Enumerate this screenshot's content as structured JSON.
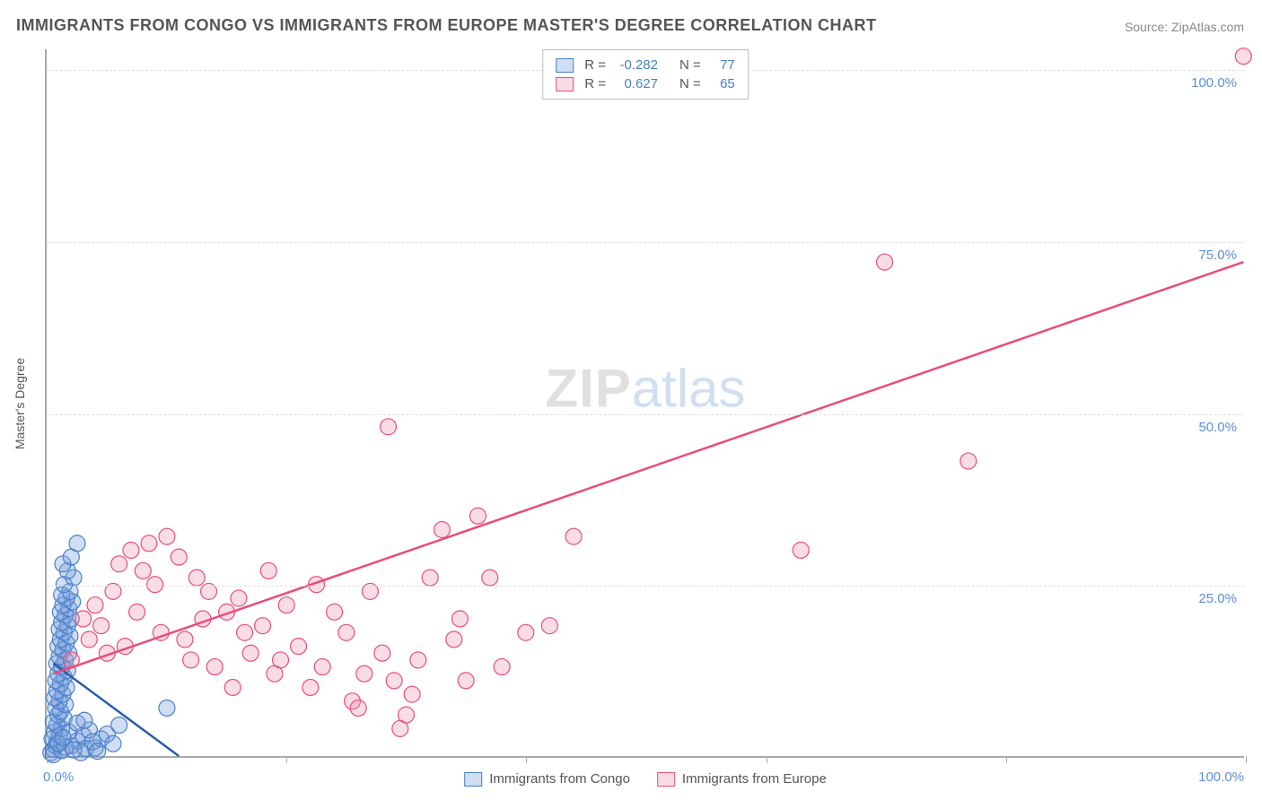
{
  "title": "IMMIGRANTS FROM CONGO VS IMMIGRANTS FROM EUROPE MASTER'S DEGREE CORRELATION CHART",
  "source": "Source: ZipAtlas.com",
  "ylabel": "Master's Degree",
  "watermark_zip": "ZIP",
  "watermark_atlas": "atlas",
  "chart": {
    "type": "scatter",
    "xlim": [
      0,
      100
    ],
    "ylim": [
      0,
      103
    ],
    "x_ticks": [
      0,
      20,
      40,
      60,
      80,
      100
    ],
    "y_gridlines": [
      25,
      50,
      75,
      100
    ],
    "x_origin_label": "0.0%",
    "x_max_label": "100.0%",
    "y_tick_labels": [
      "25.0%",
      "50.0%",
      "75.0%",
      "100.0%"
    ],
    "background_color": "#ffffff",
    "grid_color": "#dddddd",
    "axis_color": "#aaaaaa",
    "axis_label_color": "#5b8fd6",
    "marker_radius": 9,
    "line_width": 2.5,
    "series": [
      {
        "name": "Immigrants from Congo",
        "legend_label": "Immigrants from Congo",
        "color_fill": "rgba(120,160,220,0.35)",
        "color_stroke": "#4a7fc9",
        "line_color": "#2a5ca8",
        "R_label": "R =",
        "R_value": "-0.282",
        "N_label": "N =",
        "N_value": "77",
        "trend_line": {
          "x1": 0.5,
          "y1": 13.5,
          "x2": 11,
          "y2": 0
        },
        "points": [
          [
            0.3,
            0.5
          ],
          [
            0.5,
            1
          ],
          [
            0.7,
            1.5
          ],
          [
            0.8,
            2
          ],
          [
            0.4,
            2.5
          ],
          [
            1,
            3
          ],
          [
            0.6,
            3.5
          ],
          [
            1.2,
            4
          ],
          [
            0.8,
            4.5
          ],
          [
            0.5,
            5
          ],
          [
            1.4,
            5.5
          ],
          [
            0.9,
            6
          ],
          [
            1.1,
            6.5
          ],
          [
            0.7,
            7
          ],
          [
            1.5,
            7.5
          ],
          [
            1,
            8
          ],
          [
            0.6,
            8.5
          ],
          [
            1.3,
            9
          ],
          [
            0.8,
            9.5
          ],
          [
            1.6,
            10
          ],
          [
            1.1,
            10.5
          ],
          [
            0.7,
            11
          ],
          [
            1.4,
            11.5
          ],
          [
            0.9,
            12
          ],
          [
            1.7,
            12.5
          ],
          [
            1.2,
            13
          ],
          [
            0.8,
            13.5
          ],
          [
            1.5,
            14
          ],
          [
            1,
            14.5
          ],
          [
            1.8,
            15
          ],
          [
            1.3,
            15.5
          ],
          [
            0.9,
            16
          ],
          [
            1.6,
            16.5
          ],
          [
            1.1,
            17
          ],
          [
            1.9,
            17.5
          ],
          [
            1.4,
            18
          ],
          [
            1,
            18.5
          ],
          [
            1.7,
            19
          ],
          [
            1.2,
            19.5
          ],
          [
            2,
            20
          ],
          [
            1.5,
            20.5
          ],
          [
            1.1,
            21
          ],
          [
            1.8,
            21.5
          ],
          [
            1.3,
            22
          ],
          [
            2.1,
            22.5
          ],
          [
            1.6,
            23
          ],
          [
            1.2,
            23.5
          ],
          [
            1.9,
            24
          ],
          [
            1.4,
            25
          ],
          [
            2.2,
            26
          ],
          [
            1.7,
            27
          ],
          [
            1.3,
            28
          ],
          [
            2,
            29
          ],
          [
            2.5,
            31
          ],
          [
            0.5,
            0.2
          ],
          [
            1.2,
            0.8
          ],
          [
            2,
            1.5
          ],
          [
            2.5,
            2.2
          ],
          [
            3,
            3
          ],
          [
            3.5,
            3.8
          ],
          [
            4,
            1.2
          ],
          [
            4.5,
            2.5
          ],
          [
            5,
            3.2
          ],
          [
            5.5,
            1.8
          ],
          [
            6,
            4.5
          ],
          [
            2.8,
            0.5
          ],
          [
            3.2,
            1.1
          ],
          [
            10,
            7
          ],
          [
            1.5,
            1.3
          ],
          [
            2.2,
            0.9
          ],
          [
            3.8,
            2.1
          ],
          [
            4.2,
            0.7
          ],
          [
            1.8,
            3.5
          ],
          [
            2.5,
            4.8
          ],
          [
            3.1,
            5.2
          ],
          [
            0.9,
            1.8
          ],
          [
            1.3,
            2.7
          ]
        ]
      },
      {
        "name": "Immigrants from Europe",
        "legend_label": "Immigrants from Europe",
        "color_fill": "rgba(240,140,170,0.3)",
        "color_stroke": "#e84d7a",
        "line_color": "#e84d7a",
        "R_label": "R =",
        "R_value": "0.627",
        "N_label": "N =",
        "N_value": "65",
        "trend_line": {
          "x1": 0.5,
          "y1": 12,
          "x2": 100,
          "y2": 72
        },
        "points": [
          [
            2,
            14
          ],
          [
            3,
            20
          ],
          [
            4,
            22
          ],
          [
            5,
            15
          ],
          [
            5.5,
            24
          ],
          [
            6,
            28
          ],
          [
            7,
            30
          ],
          [
            7.5,
            21
          ],
          [
            8,
            27
          ],
          [
            8.5,
            31
          ],
          [
            9,
            25
          ],
          [
            10,
            32
          ],
          [
            11,
            29
          ],
          [
            12,
            14
          ],
          [
            12.5,
            26
          ],
          [
            13,
            20
          ],
          [
            14,
            13
          ],
          [
            15,
            21
          ],
          [
            15.5,
            10
          ],
          [
            16,
            23
          ],
          [
            17,
            15
          ],
          [
            18,
            19
          ],
          [
            18.5,
            27
          ],
          [
            19,
            12
          ],
          [
            20,
            22
          ],
          [
            21,
            16
          ],
          [
            22,
            10
          ],
          [
            23,
            13
          ],
          [
            24,
            21
          ],
          [
            25,
            18
          ],
          [
            25.5,
            8
          ],
          [
            26,
            7
          ],
          [
            27,
            24
          ],
          [
            28,
            15
          ],
          [
            28.5,
            48
          ],
          [
            29,
            11
          ],
          [
            29.5,
            4
          ],
          [
            30,
            6
          ],
          [
            31,
            14
          ],
          [
            32,
            26
          ],
          [
            33,
            33
          ],
          [
            34,
            17
          ],
          [
            35,
            11
          ],
          [
            36,
            35
          ],
          [
            37,
            26
          ],
          [
            38,
            13
          ],
          [
            40,
            18
          ],
          [
            42,
            19
          ],
          [
            44,
            32
          ],
          [
            63,
            30
          ],
          [
            70,
            72
          ],
          [
            77,
            43
          ],
          [
            100,
            102
          ],
          [
            3.5,
            17
          ],
          [
            4.5,
            19
          ],
          [
            6.5,
            16
          ],
          [
            9.5,
            18
          ],
          [
            11.5,
            17
          ],
          [
            13.5,
            24
          ],
          [
            16.5,
            18
          ],
          [
            19.5,
            14
          ],
          [
            22.5,
            25
          ],
          [
            26.5,
            12
          ],
          [
            30.5,
            9
          ],
          [
            34.5,
            20
          ]
        ]
      }
    ]
  }
}
